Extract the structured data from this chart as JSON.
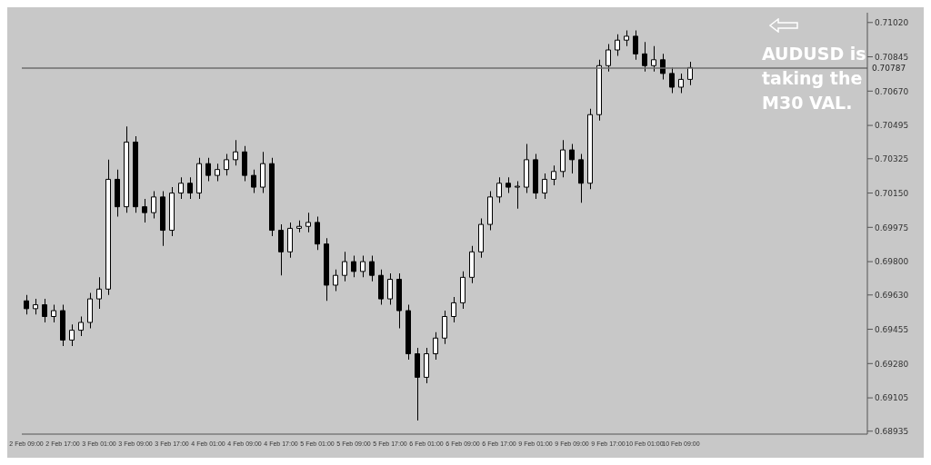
{
  "chart_data": {
    "type": "candlestick",
    "color": "#000000",
    "categories": [
      "2 Feb 09:00",
      null,
      null,
      null,
      "2 Feb 17:00",
      null,
      null,
      null,
      "3 Feb 01:00",
      null,
      null,
      null,
      "3 Feb 09:00",
      null,
      null,
      null,
      "3 Feb 17:00",
      null,
      null,
      null,
      "4 Feb 01:00",
      null,
      null,
      null,
      "4 Feb 09:00",
      null,
      null,
      null,
      "4 Feb 17:00",
      null,
      null,
      null,
      "5 Feb 01:00",
      null,
      null,
      null,
      "5 Feb 09:00",
      null,
      null,
      null,
      "5 Feb 17:00",
      null,
      null,
      null,
      "6 Feb 01:00",
      null,
      null,
      null,
      "6 Feb 09:00",
      null,
      null,
      null,
      "6 Feb 17:00",
      null,
      null,
      null,
      "9 Feb 01:00",
      null,
      null,
      null,
      "9 Feb 09:00",
      null,
      null,
      null,
      "9 Feb 17:00",
      null,
      null,
      null,
      "10 Feb 01:00",
      null,
      null,
      null,
      "10 Feb 09:00",
      null,
      null,
      null,
      null,
      null,
      null,
      null,
      null,
      null,
      null,
      null,
      null,
      null,
      null,
      null,
      null,
      null,
      null,
      null,
      null
    ],
    "ohlc": [
      [
        0.696,
        0.6963,
        0.6953,
        0.6956
      ],
      [
        0.6956,
        0.6961,
        0.6953,
        0.6958
      ],
      [
        0.6958,
        0.6961,
        0.6949,
        0.6952
      ],
      [
        0.6952,
        0.6958,
        0.6949,
        0.6955
      ],
      [
        0.6955,
        0.6958,
        0.6937,
        0.694
      ],
      [
        0.694,
        0.6948,
        0.6937,
        0.6945
      ],
      [
        0.6945,
        0.6952,
        0.6942,
        0.6949
      ],
      [
        0.6949,
        0.6964,
        0.6946,
        0.6961
      ],
      [
        0.6961,
        0.6972,
        0.6956,
        0.6966
      ],
      [
        0.6966,
        0.7032,
        0.6963,
        0.7022
      ],
      [
        0.7022,
        0.7027,
        0.7003,
        0.7008
      ],
      [
        0.7008,
        0.7049,
        0.7005,
        0.7041
      ],
      [
        0.7041,
        0.7044,
        0.7005,
        0.7008
      ],
      [
        0.7008,
        0.7012,
        0.7,
        0.7005
      ],
      [
        0.7005,
        0.7016,
        0.7002,
        0.7013
      ],
      [
        0.7013,
        0.7016,
        0.6988,
        0.6996
      ],
      [
        0.6996,
        0.7018,
        0.6993,
        0.7015
      ],
      [
        0.7015,
        0.7023,
        0.7012,
        0.702
      ],
      [
        0.702,
        0.7023,
        0.7012,
        0.7015
      ],
      [
        0.7015,
        0.7033,
        0.7012,
        0.703
      ],
      [
        0.703,
        0.7033,
        0.7021,
        0.7024
      ],
      [
        0.7024,
        0.703,
        0.7021,
        0.7027
      ],
      [
        0.7027,
        0.7035,
        0.7024,
        0.7032
      ],
      [
        0.7032,
        0.7042,
        0.7029,
        0.7036
      ],
      [
        0.7036,
        0.7039,
        0.7021,
        0.7024
      ],
      [
        0.7024,
        0.7027,
        0.7015,
        0.7018
      ],
      [
        0.7018,
        0.7036,
        0.7015,
        0.703
      ],
      [
        0.703,
        0.7033,
        0.6993,
        0.6996
      ],
      [
        0.6996,
        0.6999,
        0.6973,
        0.6985
      ],
      [
        0.6985,
        0.7,
        0.6982,
        0.6997
      ],
      [
        0.6997,
        0.7001,
        0.6995,
        0.6998
      ],
      [
        0.6998,
        0.7005,
        0.6995,
        0.7
      ],
      [
        0.7,
        0.7003,
        0.6986,
        0.6989
      ],
      [
        0.6989,
        0.6992,
        0.696,
        0.6968
      ],
      [
        0.6968,
        0.6976,
        0.6965,
        0.6973
      ],
      [
        0.6973,
        0.6985,
        0.697,
        0.698
      ],
      [
        0.698,
        0.6983,
        0.6972,
        0.6975
      ],
      [
        0.6975,
        0.6983,
        0.6972,
        0.698
      ],
      [
        0.698,
        0.6983,
        0.697,
        0.6973
      ],
      [
        0.6973,
        0.6976,
        0.6958,
        0.6961
      ],
      [
        0.6961,
        0.6974,
        0.6958,
        0.6971
      ],
      [
        0.6971,
        0.6974,
        0.6946,
        0.6955
      ],
      [
        0.6955,
        0.6958,
        0.693,
        0.6933
      ],
      [
        0.6933,
        0.6936,
        0.6899,
        0.6921
      ],
      [
        0.6921,
        0.6936,
        0.6918,
        0.6933
      ],
      [
        0.6933,
        0.6944,
        0.693,
        0.6941
      ],
      [
        0.6941,
        0.6955,
        0.6938,
        0.6952
      ],
      [
        0.6952,
        0.6962,
        0.6949,
        0.6959
      ],
      [
        0.6959,
        0.6975,
        0.6956,
        0.6972
      ],
      [
        0.6972,
        0.6988,
        0.6969,
        0.6985
      ],
      [
        0.6985,
        0.7002,
        0.6982,
        0.6999
      ],
      [
        0.6999,
        0.7016,
        0.6996,
        0.7013
      ],
      [
        0.7013,
        0.7023,
        0.701,
        0.702
      ],
      [
        0.702,
        0.7023,
        0.7015,
        0.7018
      ],
      [
        0.7018,
        0.7021,
        0.7007,
        0.7018
      ],
      [
        0.7018,
        0.704,
        0.7015,
        0.7032
      ],
      [
        0.7032,
        0.7035,
        0.7012,
        0.7015
      ],
      [
        0.7015,
        0.7025,
        0.7012,
        0.7022
      ],
      [
        0.7022,
        0.7029,
        0.7019,
        0.7026
      ],
      [
        0.7026,
        0.7042,
        0.7023,
        0.7037
      ],
      [
        0.7037,
        0.704,
        0.7025,
        0.7032
      ],
      [
        0.7032,
        0.7035,
        0.701,
        0.702
      ],
      [
        0.702,
        0.7058,
        0.7017,
        0.7055
      ],
      [
        0.7055,
        0.7083,
        0.7052,
        0.708
      ],
      [
        0.708,
        0.7091,
        0.7077,
        0.7088
      ],
      [
        0.7088,
        0.7096,
        0.7085,
        0.7093
      ],
      [
        0.7093,
        0.7098,
        0.709,
        0.7095
      ],
      [
        0.7095,
        0.7098,
        0.7083,
        0.7086
      ],
      [
        0.7086,
        0.7092,
        0.7077,
        0.708
      ],
      [
        0.708,
        0.709,
        0.7077,
        0.7083
      ],
      [
        0.7083,
        0.7086,
        0.7073,
        0.7076
      ],
      [
        0.7076,
        0.7079,
        0.7066,
        0.7069
      ],
      [
        0.7069,
        0.7076,
        0.7066,
        0.7073
      ],
      [
        0.7073,
        0.7082,
        0.707,
        0.7079
      ],
      null,
      null,
      null,
      null,
      null,
      null,
      null,
      null,
      null,
      null,
      null,
      null,
      null,
      null,
      null,
      null,
      null,
      null,
      null
    ],
    "ylim": [
      0.6892,
      0.7107
    ],
    "yticks": [
      {
        "value": 0.7102,
        "label": "0.71020"
      },
      0.70845,
      {
        "value": 0.7067,
        "label": "0.70670"
      },
      0.70495,
      0.70325,
      {
        "value": 0.7015,
        "label": "0.70150"
      },
      0.69975,
      {
        "value": 0.698,
        "label": "0.69800"
      },
      {
        "value": 0.6963,
        "label": "0.69630"
      },
      0.69455,
      {
        "value": 0.6928,
        "label": "0.69280"
      },
      0.69105,
      0.68935
    ],
    "ref_lines": [
      {
        "axis": "y",
        "value": 0.70787,
        "label": "0.70787",
        "color": "#6e6e6e"
      }
    ],
    "annotations": [
      "AUDUSD is taking the M30 VAL."
    ],
    "grid": false
  }
}
